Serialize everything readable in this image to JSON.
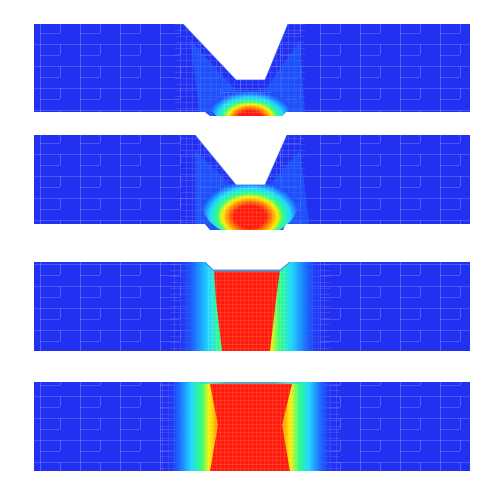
{
  "figure": {
    "panels": [
      {
        "name": "panel-1",
        "groove": "open-v",
        "gap_fill": 0.15
      },
      {
        "name": "panel-2",
        "groove": "open-v",
        "gap_fill": 0.45
      },
      {
        "name": "panel-3",
        "groove": "partially-filled",
        "gap_fill": 0.85
      },
      {
        "name": "panel-4",
        "groove": "filled",
        "gap_fill": 1.0
      }
    ],
    "colors": {
      "base": "#2230f2",
      "cool": "#1e6cff",
      "mid_cyan": "#22d8ff",
      "mid_green": "#30ff80",
      "mid_yellow": "#ffee00",
      "hot_orange": "#ff8800",
      "hot": "#ff1a0a",
      "mesh_line": "#8f9bff",
      "background": "#ffffff"
    }
  }
}
